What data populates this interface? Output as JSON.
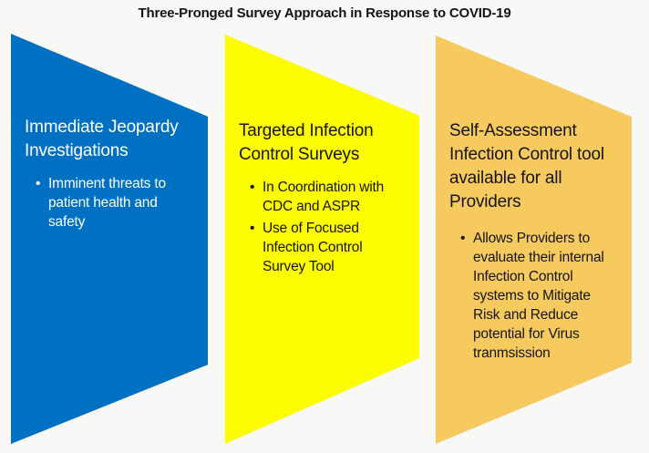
{
  "title": "Three-Pronged Survey Approach in Response to COVID-19",
  "colors": {
    "background": "#F8F8F7",
    "title_text": "#141414",
    "blue": "#0071C2",
    "yellow": "#FDFD00",
    "gold": "#F6CA5F",
    "dark_text": "#151515",
    "light_text": "#FFFFFF"
  },
  "prongs": [
    {
      "heading": "Immediate Jeopardy Investigations",
      "bullets": [
        "Imminent threats to patient health and safety"
      ],
      "fill": "#0071C2",
      "text_color": "#FFFFFF"
    },
    {
      "heading": "Targeted Infection Control Surveys",
      "bullets": [
        "In Coordination with CDC and ASPR",
        "Use of Focused Infection Control Survey Tool"
      ],
      "fill": "#FDFD00",
      "text_color": "#151515"
    },
    {
      "heading": "Self-Assessment Infection Control tool available for all Providers",
      "bullets": [
        "Allows Providers to evaluate their internal Infection Control systems to Mitigate Risk and Reduce potential for Virus tranmsission"
      ],
      "fill": "#F6CA5F",
      "text_color": "#151515"
    }
  ]
}
